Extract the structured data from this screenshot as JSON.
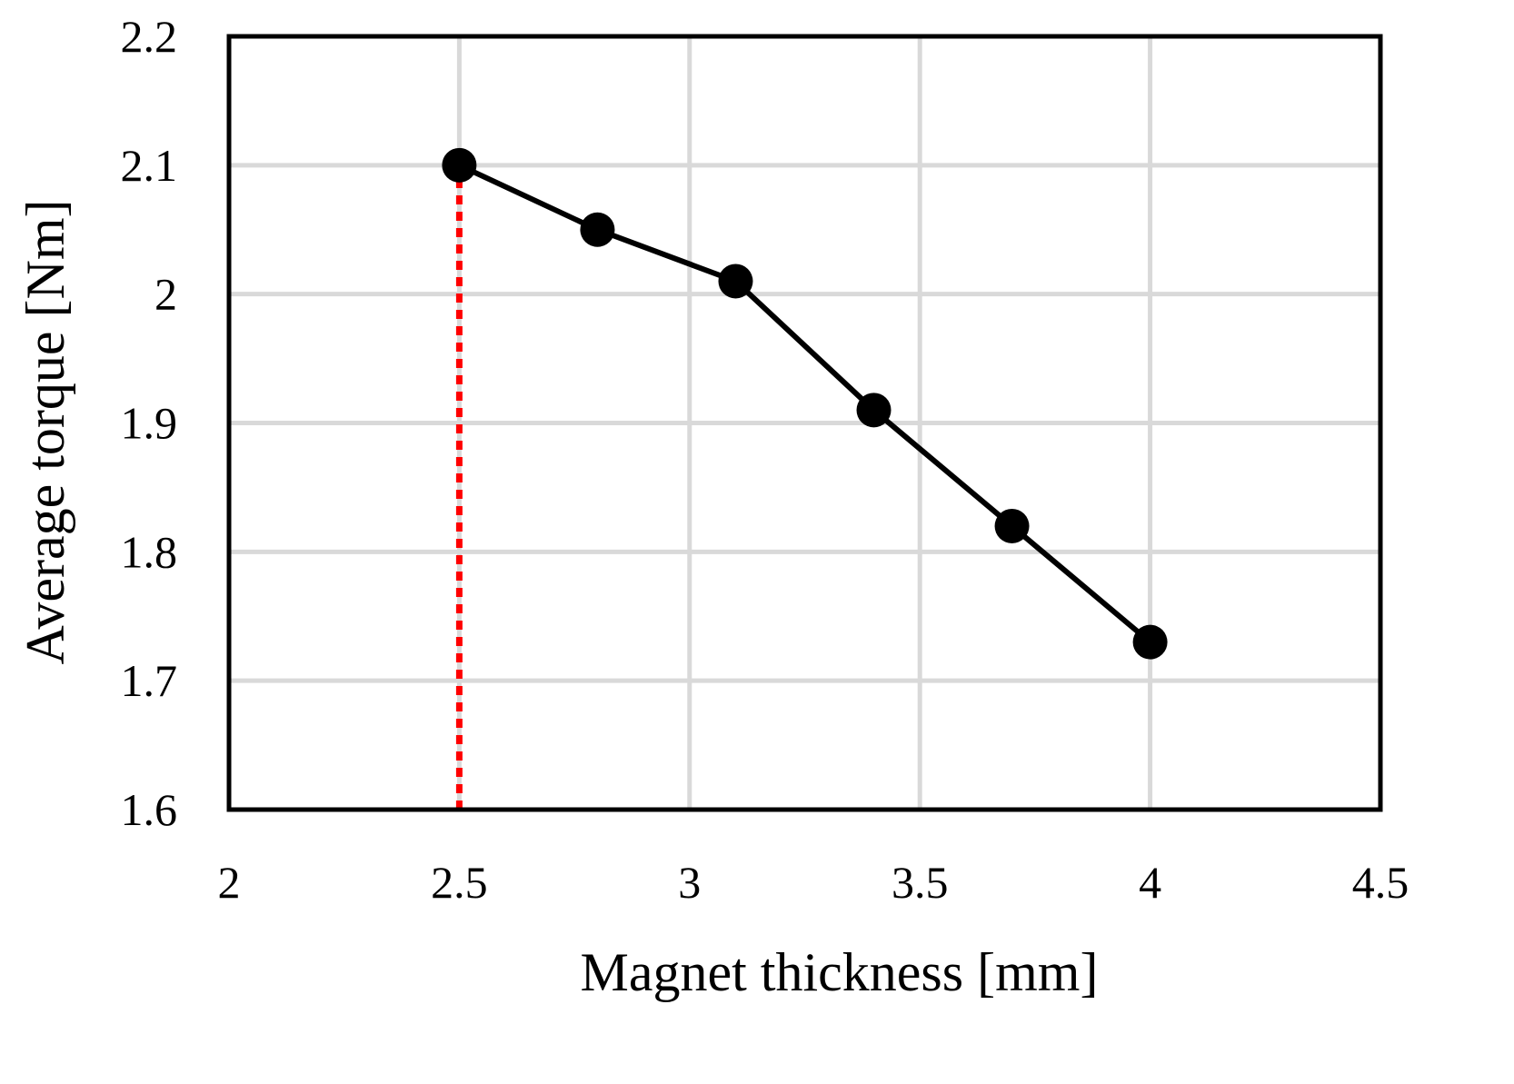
{
  "chart_data": {
    "type": "line",
    "xlabel": "Magnet thickness [mm]",
    "ylabel": "Average torque [Nm]",
    "xlim": [
      2,
      4.5
    ],
    "ylim": [
      1.6,
      2.2
    ],
    "x_ticks": [
      2,
      2.5,
      3,
      3.5,
      4,
      4.5
    ],
    "y_ticks": [
      1.6,
      1.7,
      1.8,
      1.9,
      2.0,
      2.1,
      2.2
    ],
    "x_tick_labels": [
      "2",
      "2.5",
      "3",
      "3.5",
      "4",
      "4.5"
    ],
    "y_tick_labels": [
      "1.6",
      "1.7",
      "1.8",
      "1.9",
      "2",
      "2.1",
      "2.2"
    ],
    "grid": true,
    "series": [
      {
        "x": [
          2.5,
          2.8,
          3.1,
          3.4,
          3.7,
          4.0
        ],
        "y": [
          2.1,
          2.05,
          2.01,
          1.91,
          1.82,
          1.73
        ],
        "color": "#000000",
        "marker": "circle"
      }
    ],
    "reference_lines": [
      {
        "orientation": "vertical",
        "x": 2.5,
        "from_y": 1.6,
        "to_y": 2.1,
        "style": "dotted",
        "color": "#ff0000"
      }
    ]
  }
}
